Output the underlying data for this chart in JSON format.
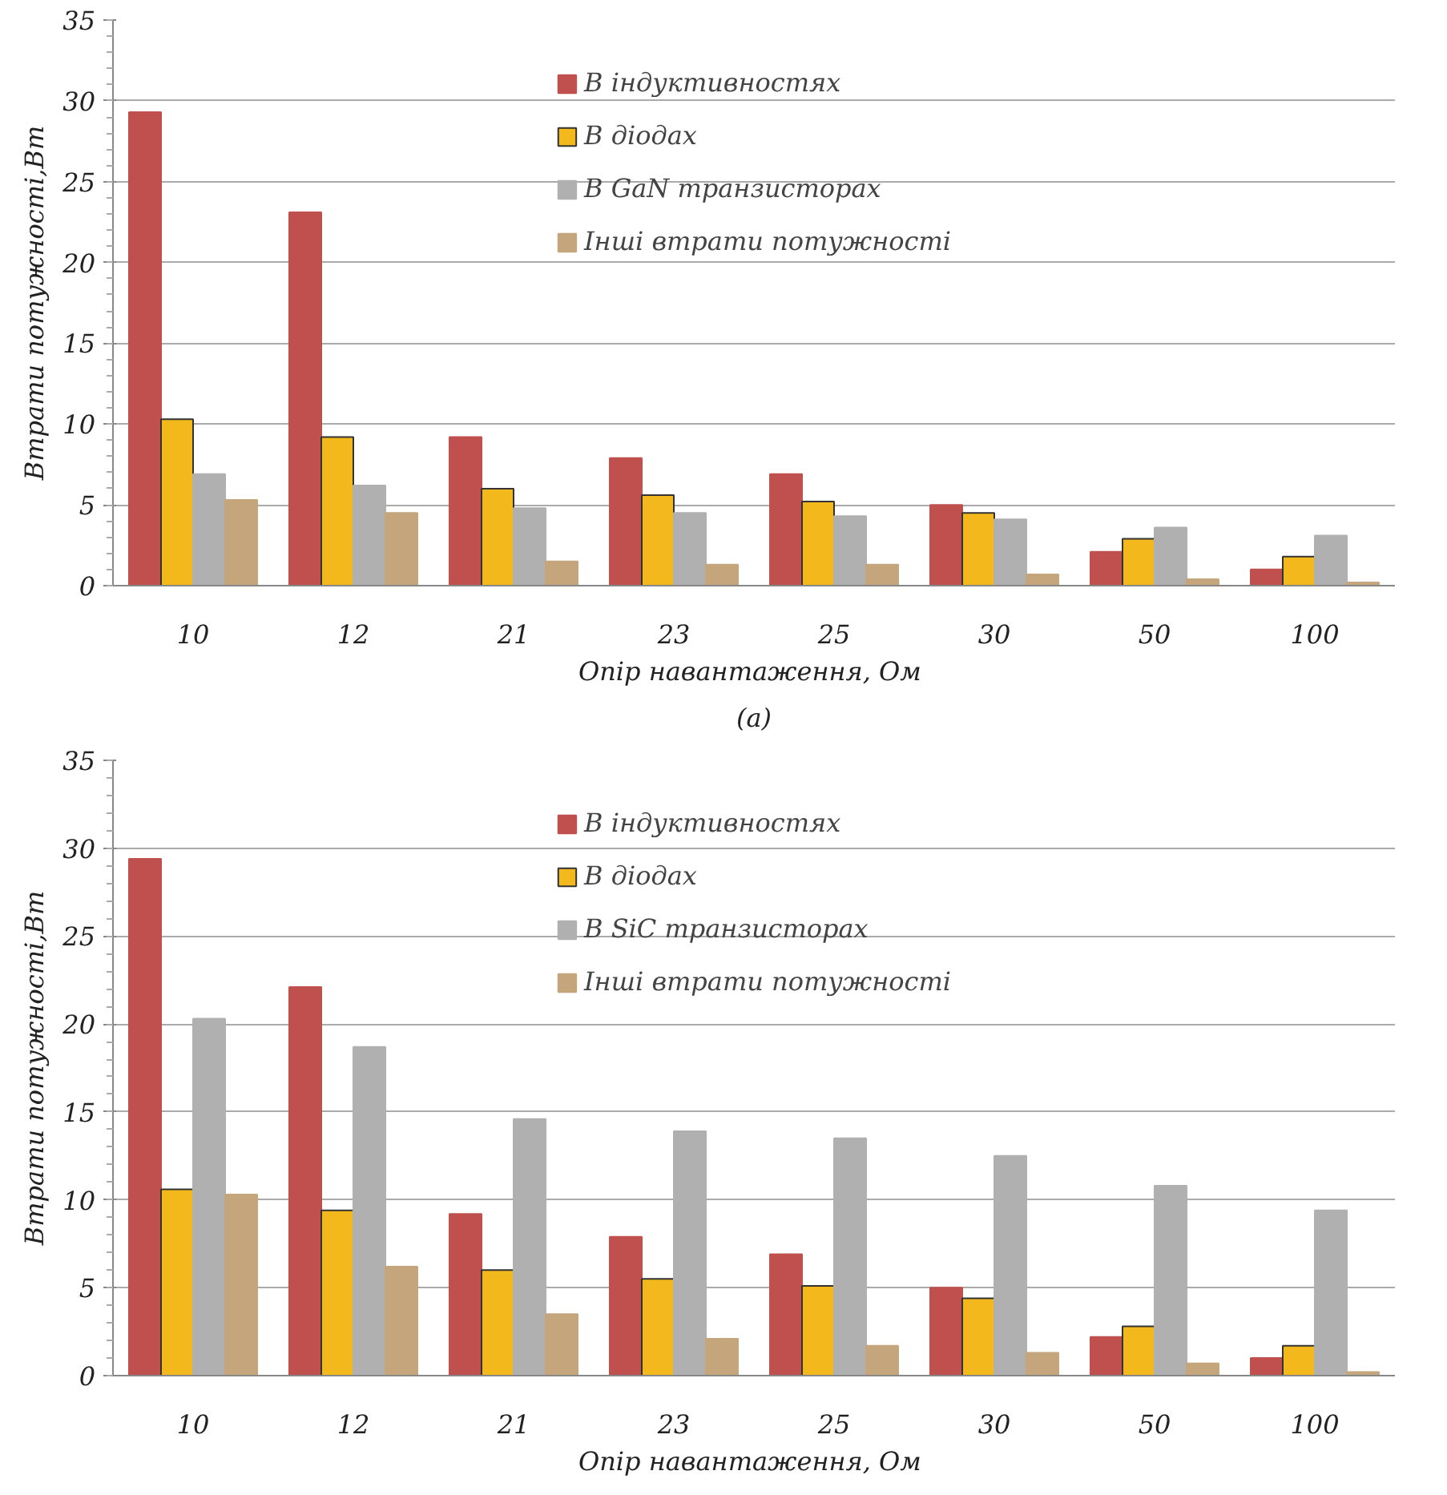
{
  "chart_data": [
    {
      "type": "bar",
      "categories": [
        "10",
        "12",
        "21",
        "23",
        "25",
        "30",
        "50",
        "100"
      ],
      "xlabel": "Опір навантаження,  Ом",
      "ylabel": "Втрати потужності,Вт",
      "annotations": [
        "(a)"
      ],
      "ylim": [
        0,
        35
      ],
      "yticks": [
        0,
        5,
        10,
        15,
        20,
        25,
        30,
        35
      ],
      "grid": "y",
      "legend": "top",
      "series": [
        {
          "name": "В індуктивностях",
          "color": "#c0504d",
          "values": [
            29.3,
            23.1,
            9.2,
            7.9,
            6.9,
            5.0,
            2.1,
            1.0
          ]
        },
        {
          "name": "В діодах",
          "color": "#f2b81c",
          "values": [
            10.3,
            9.2,
            6.0,
            5.6,
            5.2,
            4.5,
            2.9,
            1.8
          ]
        },
        {
          "name": "В GaN транзисторах",
          "color": "#b0b0b0",
          "values": [
            6.9,
            6.2,
            4.8,
            4.5,
            4.3,
            4.1,
            3.6,
            3.1
          ]
        },
        {
          "name": "Інші втрати потужності",
          "color": "#c4a57c",
          "values": [
            5.3,
            4.5,
            1.5,
            1.3,
            1.3,
            0.7,
            0.4,
            0.2
          ]
        }
      ]
    },
    {
      "type": "bar",
      "categories": [
        "10",
        "12",
        "21",
        "23",
        "25",
        "30",
        "50",
        "100"
      ],
      "xlabel": "Опір навантаження,  Ом",
      "ylabel": "Втрати потужності,Вт",
      "ylim": [
        0,
        35
      ],
      "yticks": [
        0,
        5,
        10,
        15,
        20,
        25,
        30,
        35
      ],
      "grid": "y",
      "legend": "top",
      "series": [
        {
          "name": "В індуктивностях",
          "color": "#c0504d",
          "values": [
            29.4,
            22.1,
            9.2,
            7.9,
            6.9,
            5.0,
            2.2,
            1.0
          ]
        },
        {
          "name": "В діодах",
          "color": "#f2b81c",
          "values": [
            10.6,
            9.4,
            6.0,
            5.5,
            5.1,
            4.4,
            2.8,
            1.7
          ]
        },
        {
          "name": "В SiC транзисторах",
          "color": "#b0b0b0",
          "values": [
            20.3,
            18.7,
            14.6,
            13.9,
            13.5,
            12.5,
            10.8,
            9.4
          ]
        },
        {
          "name": "Інші втрати потужності",
          "color": "#c4a57c",
          "values": [
            10.3,
            6.2,
            3.5,
            2.1,
            1.7,
            1.3,
            0.7,
            0.2
          ]
        }
      ]
    }
  ]
}
